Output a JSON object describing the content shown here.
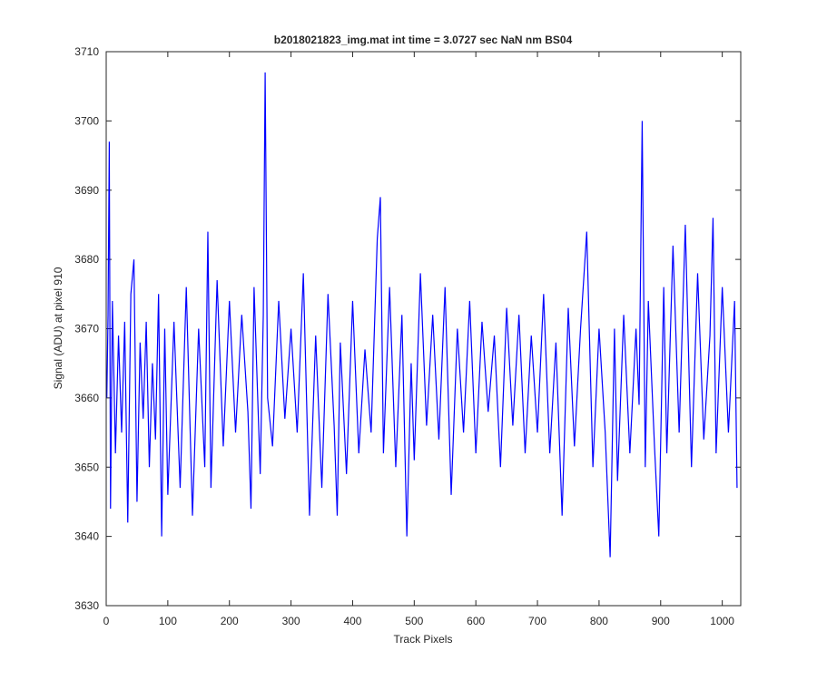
{
  "chart_data": {
    "type": "line",
    "title": "b2018021823_img.mat int time = 3.0727 sec  NaN nm BS04",
    "x_label": "Track Pixels",
    "y_label": "Signal (ADU) at pixel 910",
    "x": [
      1,
      3,
      5,
      7,
      10,
      15,
      20,
      25,
      30,
      35,
      40,
      45,
      50,
      55,
      60,
      65,
      70,
      75,
      80,
      85,
      90,
      95,
      100,
      110,
      120,
      130,
      140,
      150,
      160,
      165,
      170,
      180,
      190,
      200,
      210,
      220,
      230,
      235,
      240,
      250,
      255,
      258,
      262,
      270,
      280,
      290,
      300,
      310,
      320,
      330,
      340,
      350,
      360,
      370,
      375,
      380,
      390,
      400,
      410,
      420,
      430,
      440,
      445,
      450,
      460,
      470,
      480,
      488,
      495,
      500,
      510,
      520,
      530,
      540,
      550,
      560,
      570,
      580,
      590,
      600,
      610,
      620,
      630,
      640,
      650,
      660,
      670,
      680,
      690,
      700,
      710,
      720,
      730,
      740,
      750,
      760,
      770,
      780,
      790,
      800,
      810,
      818,
      825,
      830,
      840,
      850,
      860,
      865,
      870,
      875,
      880,
      890,
      897,
      905,
      910,
      920,
      930,
      940,
      950,
      960,
      970,
      980,
      985,
      990,
      1000,
      1010,
      1020,
      1024
    ],
    "series": [
      {
        "name": "signal",
        "color": "#0000ff",
        "values": [
          3660,
          3672,
          3697,
          3644,
          3674,
          3652,
          3669,
          3655,
          3671,
          3642,
          3675,
          3680,
          3645,
          3668,
          3657,
          3671,
          3650,
          3665,
          3654,
          3675,
          3640,
          3670,
          3646,
          3671,
          3647,
          3676,
          3643,
          3670,
          3650,
          3684,
          3647,
          3677,
          3653,
          3674,
          3655,
          3672,
          3658,
          3644,
          3676,
          3649,
          3672,
          3707,
          3660,
          3653,
          3674,
          3657,
          3670,
          3655,
          3678,
          3643,
          3669,
          3647,
          3675,
          3656,
          3643,
          3668,
          3649,
          3674,
          3652,
          3667,
          3655,
          3683,
          3689,
          3652,
          3676,
          3650,
          3672,
          3640,
          3665,
          3651,
          3678,
          3656,
          3672,
          3654,
          3676,
          3646,
          3670,
          3655,
          3674,
          3652,
          3671,
          3658,
          3669,
          3650,
          3673,
          3656,
          3672,
          3652,
          3669,
          3655,
          3675,
          3652,
          3668,
          3643,
          3673,
          3653,
          3670,
          3684,
          3650,
          3670,
          3655,
          3637,
          3670,
          3648,
          3672,
          3652,
          3670,
          3659,
          3700,
          3650,
          3674,
          3653,
          3640,
          3676,
          3652,
          3682,
          3655,
          3685,
          3650,
          3678,
          3654,
          3669,
          3686,
          3652,
          3676,
          3655,
          3674,
          3647
        ]
      }
    ],
    "xlim": [
      0,
      1030
    ],
    "ylim": [
      3630,
      3710
    ],
    "xticks": [
      0,
      100,
      200,
      300,
      400,
      500,
      600,
      700,
      800,
      900,
      1000
    ],
    "yticks": [
      3630,
      3640,
      3650,
      3660,
      3670,
      3680,
      3690,
      3700,
      3710
    ]
  }
}
